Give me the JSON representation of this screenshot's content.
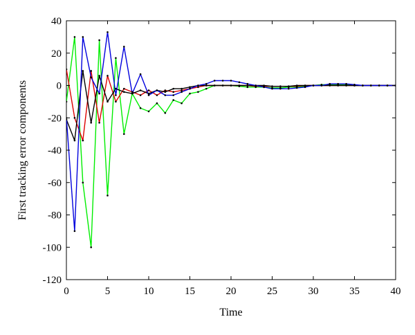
{
  "chart_data": {
    "type": "line",
    "xlabel": "Time",
    "ylabel": "First tracking error components",
    "xlim": [
      0,
      40
    ],
    "ylim": [
      -120,
      40
    ],
    "xticks": [
      0,
      5,
      10,
      15,
      20,
      25,
      30,
      35,
      40
    ],
    "yticks": [
      -120,
      -100,
      -80,
      -60,
      -40,
      -20,
      0,
      20,
      40
    ],
    "grid": false,
    "x": [
      0,
      1,
      2,
      3,
      4,
      5,
      6,
      7,
      8,
      9,
      10,
      11,
      12,
      13,
      14,
      15,
      16,
      17,
      18,
      19,
      20,
      21,
      22,
      23,
      24,
      25,
      26,
      27,
      28,
      29,
      30,
      31,
      32,
      33,
      34,
      35,
      36,
      37,
      38,
      39,
      40
    ],
    "series": [
      {
        "color": "#00ee00",
        "values": [
          -10,
          30,
          -60,
          -100,
          28,
          -68,
          17,
          -30,
          -5,
          -14,
          -16,
          -11,
          -17,
          -9,
          -11,
          -5,
          -4,
          -2,
          0,
          0,
          0,
          -0.5,
          -1,
          -1,
          -1,
          -1.5,
          -1.5,
          -1,
          -1,
          -0.5,
          0,
          0.5,
          0.5,
          0.5,
          0.5,
          0,
          0,
          0,
          0,
          0,
          0
        ]
      },
      {
        "color": "#dd0000",
        "values": [
          10,
          -20,
          -34,
          9,
          -23,
          6,
          -10,
          -2,
          -4,
          -6,
          -3,
          -6,
          -3,
          -4,
          -3,
          -2,
          -1,
          0,
          0,
          0,
          0,
          0,
          0,
          -0.5,
          -0.5,
          -0.5,
          -0.5,
          -0.5,
          -0.5,
          0,
          0,
          0,
          0,
          0,
          0,
          0,
          0,
          0,
          0,
          0,
          0
        ]
      },
      {
        "color": "#000000",
        "values": [
          -21,
          -34,
          9,
          -23,
          6,
          -10,
          -2,
          -4,
          -5,
          -3,
          -5,
          -3,
          -4,
          -2,
          -2,
          -1,
          0,
          0,
          0,
          0,
          0,
          0,
          0,
          0,
          0,
          -0.5,
          -0.5,
          -0.5,
          0,
          0,
          0,
          0,
          0,
          0,
          0,
          0,
          0,
          0,
          0,
          0,
          0
        ]
      },
      {
        "color": "#0000dd",
        "values": [
          -20,
          -90,
          30,
          5,
          -5,
          33,
          -6,
          24,
          -5,
          7,
          -6,
          -3,
          -6,
          -6,
          -4,
          -2,
          0,
          1,
          3,
          3,
          3,
          2,
          1,
          0,
          -1,
          -2,
          -2,
          -2,
          -1.5,
          -1,
          0,
          0,
          1,
          1,
          1,
          0.5,
          0,
          0,
          0,
          0,
          0
        ]
      }
    ]
  }
}
